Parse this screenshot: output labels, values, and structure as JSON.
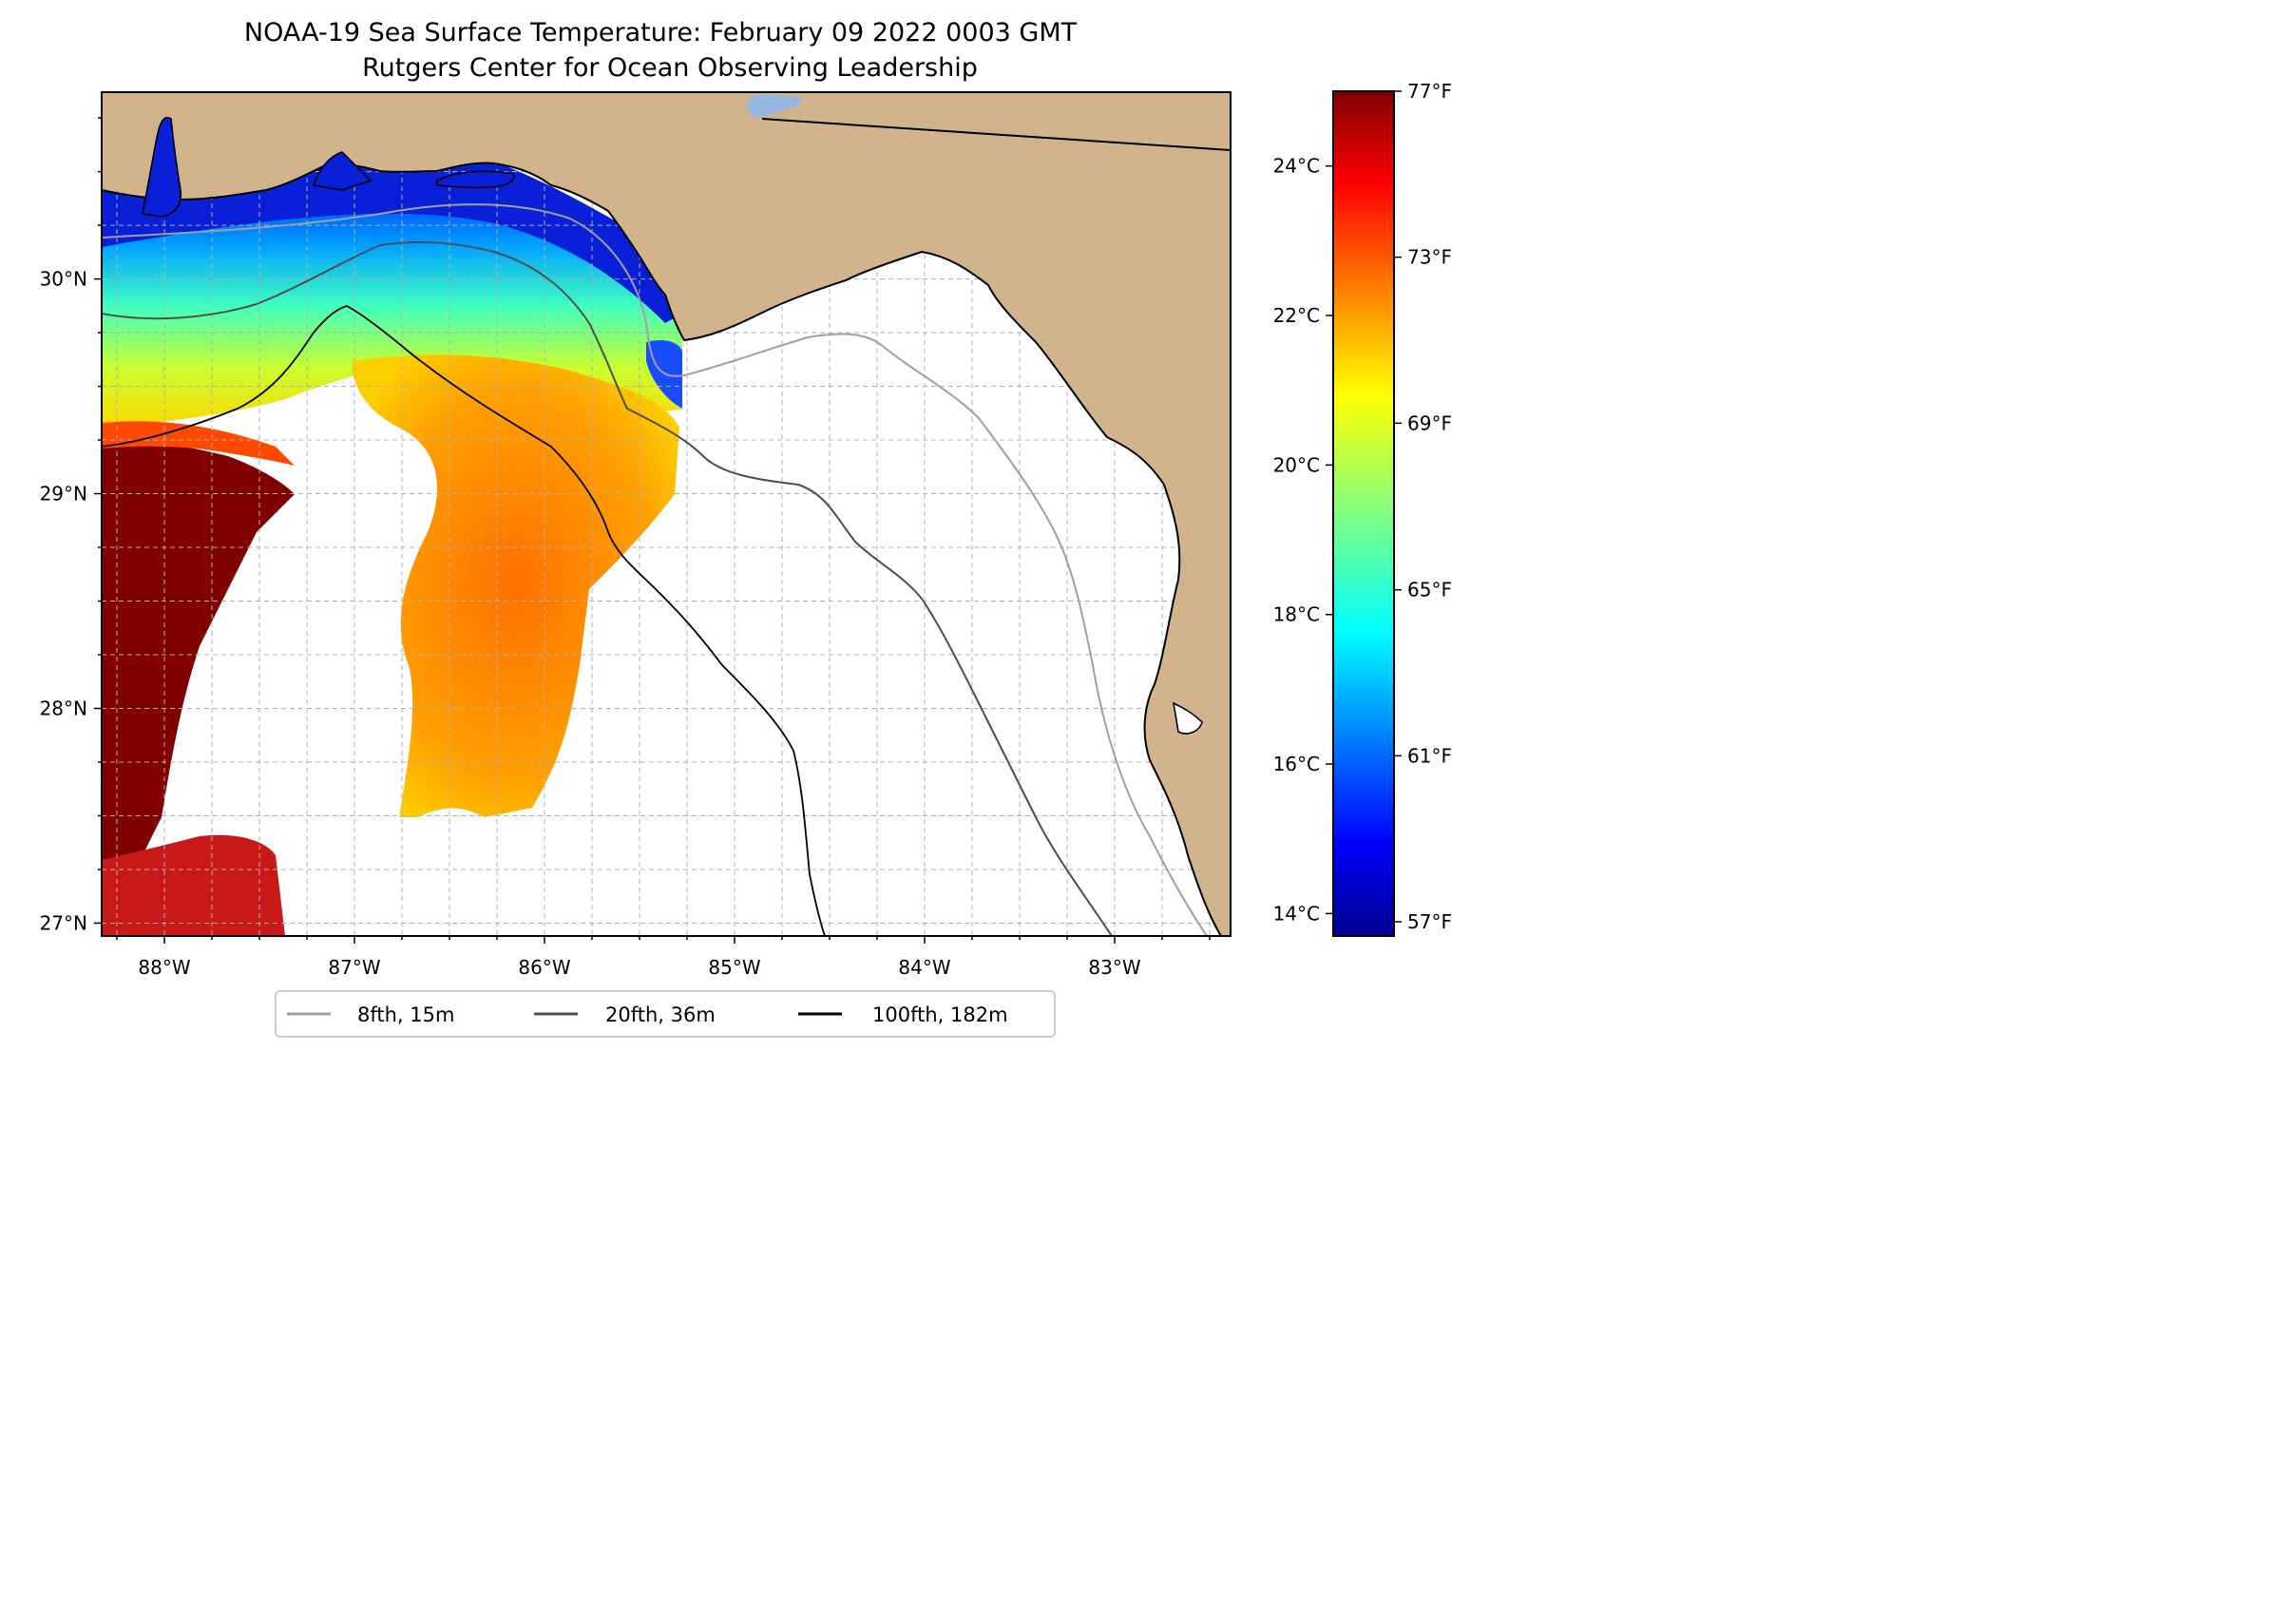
{
  "title": "NOAA-19 Sea Surface Temperature: February 09 2022 0003 GMT",
  "subtitle": "Rutgers Center for Ocean Observing Leadership",
  "map": {
    "lon_range": [
      -88.33,
      -82.39
    ],
    "lat_range": [
      26.94,
      30.87
    ],
    "x_ticks": [
      {
        "lon": -88,
        "label": "88°W"
      },
      {
        "lon": -87,
        "label": "87°W"
      },
      {
        "lon": -86,
        "label": "86°W"
      },
      {
        "lon": -85,
        "label": "85°W"
      },
      {
        "lon": -84,
        "label": "84°W"
      },
      {
        "lon": -83,
        "label": "83°W"
      }
    ],
    "y_ticks": [
      {
        "lat": 30,
        "label": "30°N"
      },
      {
        "lat": 29,
        "label": "29°N"
      },
      {
        "lat": 28,
        "label": "28°N"
      },
      {
        "lat": 27,
        "label": "27°N"
      }
    ],
    "gridlines": "dashed, every 0.25°",
    "colors": {
      "land": "#d2b48c",
      "no_data": "#ffffff",
      "lake": "#97b6e1",
      "grid": "#b0b0b0",
      "coast": "#000000"
    }
  },
  "colorbar": {
    "colormap": "jet",
    "range_c": [
      13.7,
      25.0
    ],
    "celsius_ticks": [
      {
        "value": 14,
        "label": "14°C"
      },
      {
        "value": 16,
        "label": "16°C"
      },
      {
        "value": 18,
        "label": "18°C"
      },
      {
        "value": 20,
        "label": "20°C"
      },
      {
        "value": 22,
        "label": "22°C"
      },
      {
        "value": 24,
        "label": "24°C"
      }
    ],
    "fahrenheit_ticks": [
      {
        "value_c": 13.89,
        "label": "57°F"
      },
      {
        "value_c": 16.11,
        "label": "61°F"
      },
      {
        "value_c": 18.33,
        "label": "65°F"
      },
      {
        "value_c": 20.56,
        "label": "69°F"
      },
      {
        "value_c": 22.78,
        "label": "73°F"
      },
      {
        "value_c": 25.0,
        "label": "77°F"
      }
    ]
  },
  "legend": {
    "placement": "bottom-center",
    "items": [
      {
        "label": "8fth, 15m",
        "color": "#a0a0a0"
      },
      {
        "label": "20fth, 36m",
        "color": "#4f4f4f"
      },
      {
        "label": "100fth, 182m",
        "color": "#000000"
      }
    ]
  }
}
